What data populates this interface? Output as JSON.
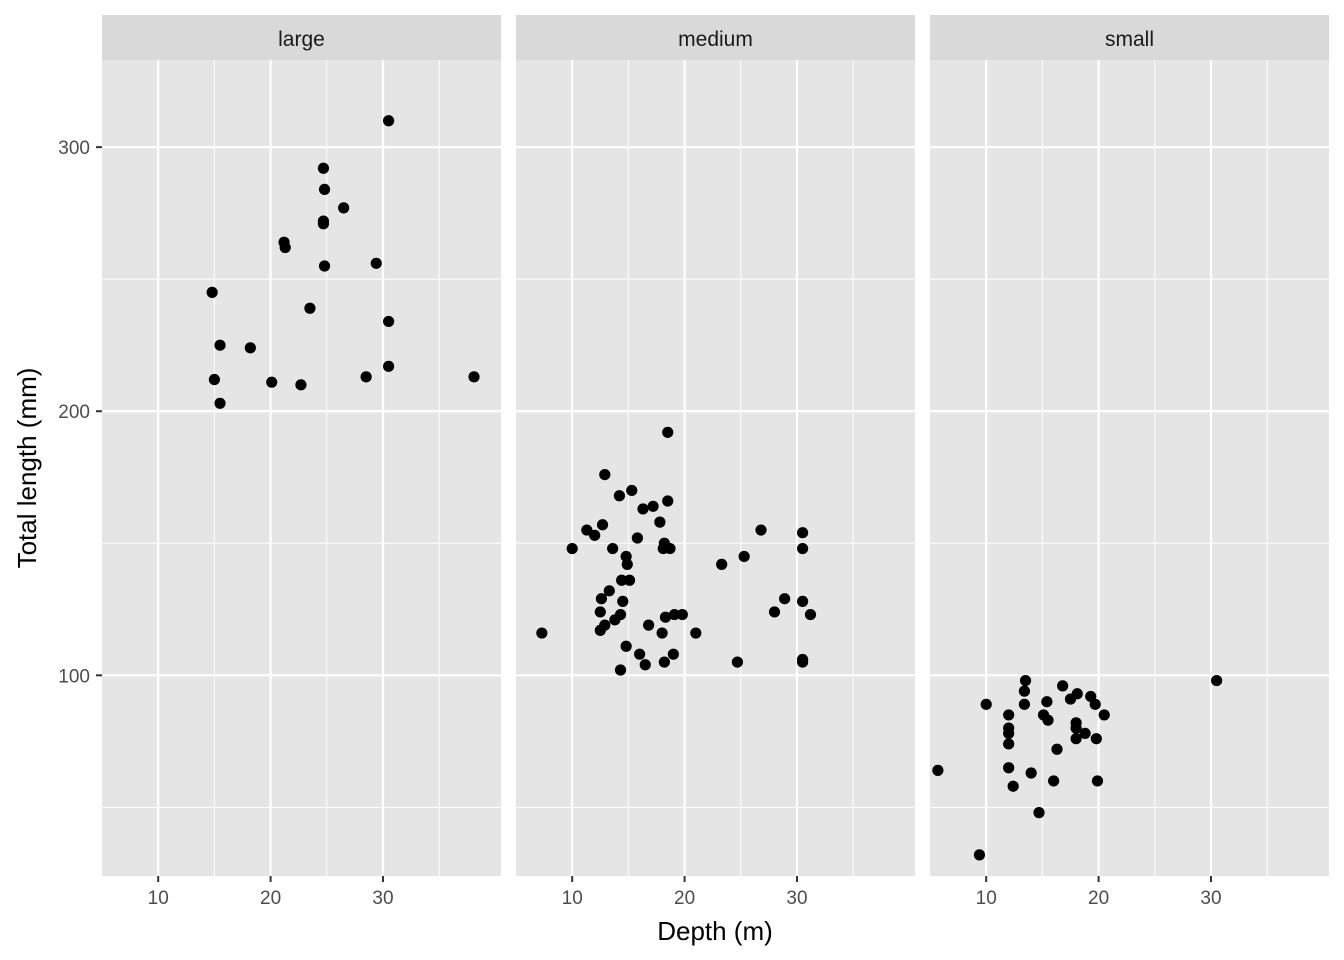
{
  "chart_data": {
    "type": "scatter",
    "xlabel": "Depth (m)",
    "ylabel": "Total length (mm)",
    "x_ticks": [
      10,
      20,
      30
    ],
    "y_ticks": [
      100,
      200,
      300
    ],
    "xlim": [
      5,
      40.5
    ],
    "ylim": [
      24,
      333
    ],
    "grid": true,
    "colors": {
      "panel_bg": "#E5E5E5",
      "strip_bg": "#D9D9D9",
      "grid": "#FFFFFF",
      "point": "#000000",
      "axis_text": "#4D4D4D",
      "title_text": "#000000"
    },
    "facets": [
      {
        "label": "large",
        "points": [
          [
            30.5,
            310
          ],
          [
            24.7,
            292
          ],
          [
            24.8,
            284
          ],
          [
            26.5,
            277
          ],
          [
            24.7,
            272
          ],
          [
            24.7,
            271
          ],
          [
            21.2,
            264
          ],
          [
            21.3,
            262
          ],
          [
            24.8,
            255
          ],
          [
            29.4,
            256
          ],
          [
            14.8,
            245
          ],
          [
            23.5,
            239
          ],
          [
            30.5,
            234
          ],
          [
            15.5,
            225
          ],
          [
            18.2,
            224
          ],
          [
            30.5,
            217
          ],
          [
            28.5,
            213
          ],
          [
            38.1,
            213
          ],
          [
            15.0,
            212
          ],
          [
            20.1,
            211
          ],
          [
            22.7,
            210
          ],
          [
            15.5,
            203
          ]
        ]
      },
      {
        "label": "medium",
        "points": [
          [
            18.5,
            192
          ],
          [
            12.9,
            176
          ],
          [
            15.3,
            170
          ],
          [
            14.2,
            168
          ],
          [
            18.5,
            166
          ],
          [
            17.2,
            164
          ],
          [
            16.3,
            163
          ],
          [
            17.8,
            158
          ],
          [
            11.3,
            155
          ],
          [
            12.7,
            157
          ],
          [
            26.8,
            155
          ],
          [
            30.5,
            154
          ],
          [
            12.0,
            153
          ],
          [
            15.8,
            152
          ],
          [
            18.2,
            150
          ],
          [
            18.1,
            148
          ],
          [
            18.7,
            148
          ],
          [
            30.5,
            148
          ],
          [
            10.0,
            148
          ],
          [
            13.6,
            148
          ],
          [
            25.3,
            145
          ],
          [
            14.8,
            145
          ],
          [
            23.3,
            142
          ],
          [
            14.9,
            142
          ],
          [
            14.4,
            136
          ],
          [
            15.1,
            136
          ],
          [
            13.3,
            132
          ],
          [
            28.9,
            129
          ],
          [
            12.6,
            129
          ],
          [
            30.5,
            128
          ],
          [
            14.5,
            128
          ],
          [
            12.5,
            124
          ],
          [
            28.0,
            124
          ],
          [
            31.2,
            123
          ],
          [
            14.3,
            123
          ],
          [
            19.1,
            123
          ],
          [
            19.8,
            123
          ],
          [
            18.3,
            122
          ],
          [
            13.8,
            121
          ],
          [
            12.9,
            119
          ],
          [
            16.8,
            119
          ],
          [
            12.5,
            117
          ],
          [
            7.3,
            116
          ],
          [
            18.0,
            116
          ],
          [
            21.0,
            116
          ],
          [
            14.8,
            111
          ],
          [
            16.0,
            108
          ],
          [
            19.0,
            108
          ],
          [
            30.5,
            106
          ],
          [
            30.5,
            105
          ],
          [
            24.7,
            105
          ],
          [
            18.2,
            105
          ],
          [
            16.5,
            104
          ],
          [
            14.3,
            102
          ]
        ]
      },
      {
        "label": "small",
        "points": [
          [
            13.5,
            98
          ],
          [
            30.5,
            98
          ],
          [
            16.8,
            96
          ],
          [
            13.4,
            94
          ],
          [
            18.1,
            93
          ],
          [
            19.3,
            92
          ],
          [
            17.5,
            91
          ],
          [
            10.0,
            89
          ],
          [
            13.4,
            89
          ],
          [
            15.4,
            90
          ],
          [
            19.7,
            89
          ],
          [
            12.0,
            85
          ],
          [
            15.1,
            85
          ],
          [
            20.5,
            85
          ],
          [
            15.5,
            83
          ],
          [
            18.0,
            82
          ],
          [
            12.0,
            80
          ],
          [
            18.0,
            80
          ],
          [
            12.0,
            78
          ],
          [
            18.8,
            78
          ],
          [
            19.8,
            76
          ],
          [
            18.0,
            76
          ],
          [
            12.0,
            74
          ],
          [
            16.3,
            72
          ],
          [
            12.0,
            65
          ],
          [
            14.0,
            63
          ],
          [
            5.7,
            64
          ],
          [
            16.0,
            60
          ],
          [
            19.9,
            60
          ],
          [
            12.4,
            58
          ],
          [
            14.7,
            48
          ],
          [
            9.4,
            32
          ]
        ]
      }
    ]
  }
}
